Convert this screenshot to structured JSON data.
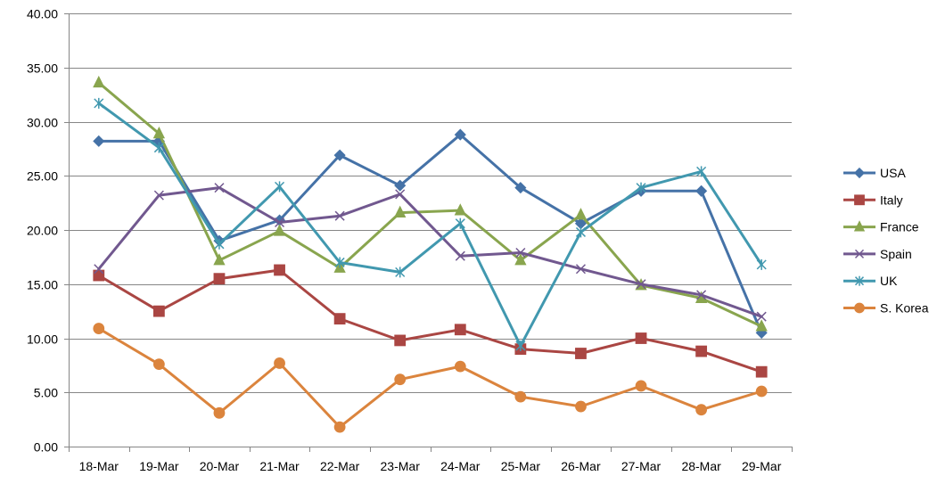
{
  "chart_data": {
    "type": "line",
    "title": "",
    "xlabel": "",
    "ylabel": "",
    "categories": [
      "18-Mar",
      "19-Mar",
      "20-Mar",
      "21-Mar",
      "22-Mar",
      "23-Mar",
      "24-Mar",
      "25-Mar",
      "26-Mar",
      "27-Mar",
      "28-Mar",
      "29-Mar"
    ],
    "ylim": [
      0,
      40
    ],
    "y_ticks": [
      "0.00",
      "5.00",
      "10.00",
      "15.00",
      "20.00",
      "25.00",
      "30.00",
      "35.00",
      "40.00"
    ],
    "grid": "horizontal",
    "legend_position": "right",
    "series": [
      {
        "name": "USA",
        "color": "#4572A7",
        "marker": "diamond",
        "values": [
          28.2,
          28.2,
          19.0,
          20.9,
          26.9,
          24.1,
          28.8,
          23.9,
          20.6,
          23.6,
          23.6,
          10.5
        ]
      },
      {
        "name": "Italy",
        "color": "#AA4643",
        "marker": "square",
        "values": [
          15.8,
          12.5,
          15.5,
          16.3,
          11.8,
          9.8,
          10.8,
          9.0,
          8.6,
          10.0,
          8.8,
          6.9
        ]
      },
      {
        "name": "France",
        "color": "#89A54E",
        "marker": "triangle",
        "values": [
          33.6,
          28.9,
          17.2,
          19.9,
          16.5,
          21.6,
          21.8,
          17.2,
          21.4,
          14.9,
          13.7,
          11.1
        ]
      },
      {
        "name": "Spain",
        "color": "#71588F",
        "marker": "x",
        "values": [
          16.4,
          23.2,
          23.9,
          20.7,
          21.3,
          23.3,
          17.6,
          17.9,
          16.4,
          15.0,
          14.0,
          12.0
        ]
      },
      {
        "name": "UK",
        "color": "#4198AF",
        "marker": "asterisk",
        "values": [
          31.7,
          27.6,
          18.7,
          24.0,
          17.0,
          16.1,
          20.6,
          9.3,
          19.8,
          23.9,
          25.4,
          16.8
        ]
      },
      {
        "name": "S. Korea",
        "color": "#DB843D",
        "marker": "circle",
        "values": [
          10.9,
          7.6,
          3.1,
          7.7,
          1.8,
          6.2,
          7.4,
          4.6,
          3.7,
          5.6,
          3.4,
          5.1
        ]
      }
    ]
  }
}
